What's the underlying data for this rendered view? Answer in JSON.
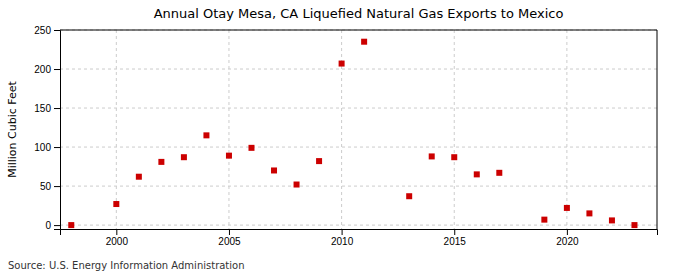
{
  "chart_data": {
    "type": "scatter",
    "title": "Annual Otay Mesa, CA Liquefied Natural Gas Exports to Mexico",
    "ylabel": "Million Cubic Feet",
    "source": "Source: U.S. Energy Information Administration",
    "x": [
      1998,
      2000,
      2001,
      2002,
      2003,
      2004,
      2005,
      2006,
      2007,
      2008,
      2009,
      2010,
      2011,
      2013,
      2014,
      2015,
      2016,
      2017,
      2019,
      2020,
      2021,
      2022,
      2023
    ],
    "values": [
      0,
      27,
      62,
      81,
      87,
      115,
      89,
      99,
      70,
      52,
      82,
      207,
      235,
      37,
      88,
      87,
      65,
      67,
      7,
      22,
      15,
      6,
      0
    ],
    "color": "#cc0000",
    "marker": "square",
    "xlim": [
      1997.5,
      2024
    ],
    "ylim": [
      -5,
      250
    ],
    "xticks": [
      2000,
      2005,
      2010,
      2015,
      2020
    ],
    "yticks": [
      0,
      50,
      100,
      150,
      200,
      250
    ],
    "grid": true
  }
}
